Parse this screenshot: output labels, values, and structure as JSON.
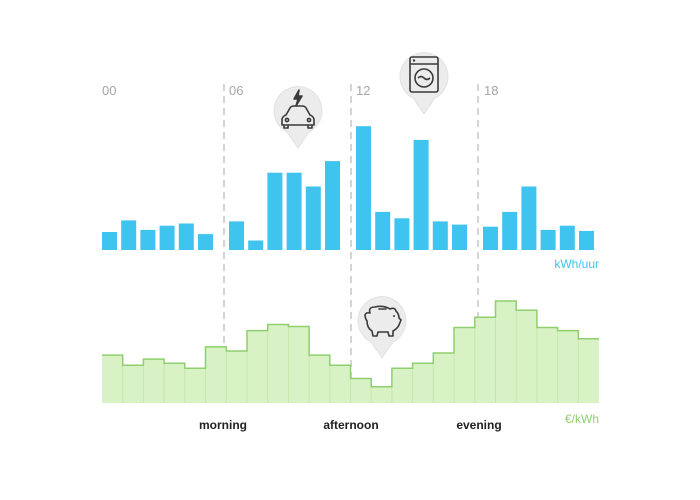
{
  "chart_data": [
    {
      "type": "bar",
      "unit_label": "kWh/uur",
      "color": "#3fc3ef",
      "hour_labels": [
        "00",
        "06",
        "12",
        "18"
      ],
      "values": [
        17,
        28,
        19,
        23,
        25,
        15,
        27,
        9,
        73,
        73,
        60,
        84,
        117,
        36,
        30,
        104,
        27,
        24,
        22,
        36,
        60,
        19,
        23,
        18
      ],
      "ylim": [
        0,
        120
      ]
    },
    {
      "type": "area",
      "unit_label": "€/kWh",
      "color": "#8fcf6e",
      "fill_color": "#d9f2c5",
      "values": [
        47,
        37,
        43,
        39,
        34,
        55,
        51,
        71,
        77,
        75,
        47,
        37,
        24,
        16,
        34,
        39,
        49,
        74,
        84,
        100,
        91,
        74,
        71,
        63
      ],
      "ylim": [
        0,
        100
      ]
    }
  ],
  "periods": [
    "morning",
    "afternoon",
    "evening"
  ],
  "markers": [
    {
      "icon": "electric-car-icon"
    },
    {
      "icon": "washing-machine-icon"
    },
    {
      "icon": "piggy-bank-icon"
    }
  ]
}
